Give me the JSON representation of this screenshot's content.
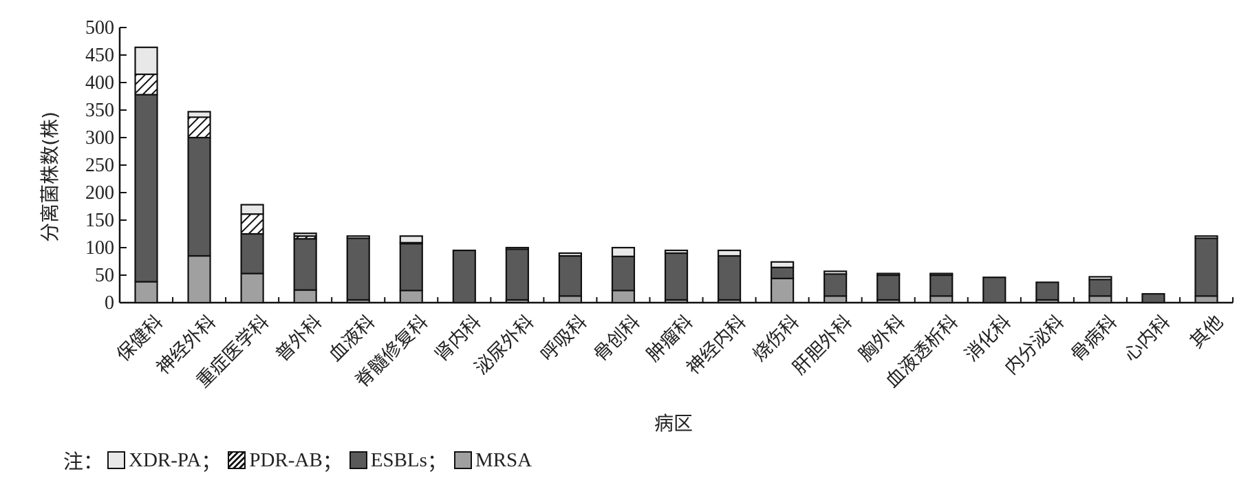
{
  "chart_data": {
    "type": "bar",
    "stacked": true,
    "ylabel": "分离菌株数(株)",
    "xlabel": "病区",
    "ylim": [
      0,
      500
    ],
    "yticks": [
      0,
      50,
      100,
      150,
      200,
      250,
      300,
      350,
      400,
      450,
      500
    ],
    "categories": [
      "保健科",
      "神经外科",
      "重症医学科",
      "普外科",
      "血液科",
      "脊髓修复科",
      "肾内科",
      "泌尿外科",
      "呼吸科",
      "骨创科",
      "肿瘤科",
      "神经内科",
      "烧伤科",
      "肝胆外科",
      "胸外科",
      "血液透析科",
      "消化科",
      "内分泌科",
      "骨病科",
      "心内科",
      "其他"
    ],
    "series": [
      {
        "name": "MRSA",
        "fill": "#a0a0a0",
        "values": [
          38,
          85,
          53,
          23,
          5,
          22,
          0,
          5,
          12,
          22,
          5,
          5,
          44,
          12,
          5,
          12,
          0,
          5,
          12,
          0,
          12
        ]
      },
      {
        "name": "ESBLs",
        "fill": "#5a5a5a",
        "values": [
          340,
          215,
          72,
          93,
          112,
          85,
          95,
          92,
          73,
          62,
          85,
          80,
          20,
          40,
          45,
          38,
          46,
          32,
          30,
          16,
          105
        ]
      },
      {
        "name": "PDR-AB",
        "fill": "hatch",
        "values": [
          37,
          37,
          36,
          5,
          0,
          2,
          0,
          0,
          0,
          0,
          0,
          0,
          0,
          0,
          0,
          0,
          0,
          0,
          0,
          0,
          0
        ]
      },
      {
        "name": "XDR-PA",
        "fill": "#e8e8e8",
        "values": [
          49,
          10,
          17,
          5,
          4,
          12,
          0,
          3,
          5,
          16,
          5,
          10,
          10,
          5,
          3,
          3,
          0,
          0,
          5,
          0,
          4
        ]
      }
    ],
    "legend": {
      "note": "注：",
      "position": "bottom-left",
      "items": [
        {
          "label": "XDR-PA",
          "fill": "#e8e8e8",
          "sep": "；"
        },
        {
          "label": "PDR-AB",
          "fill": "hatch",
          "sep": "；"
        },
        {
          "label": "ESBLs",
          "fill": "#5a5a5a",
          "sep": "；"
        },
        {
          "label": "MRSA",
          "fill": "#a0a0a0",
          "sep": ""
        }
      ]
    }
  }
}
